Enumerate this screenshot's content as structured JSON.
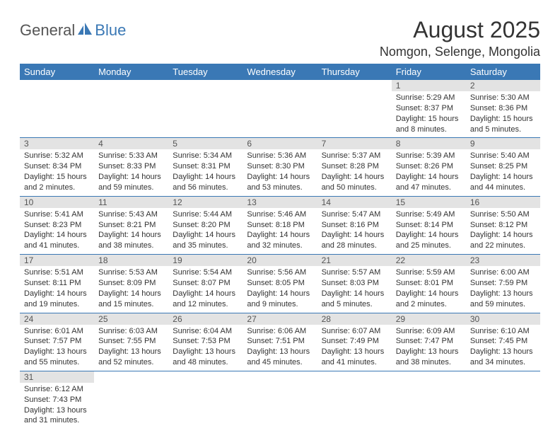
{
  "logo": {
    "text_a": "General",
    "text_b": "Blue"
  },
  "title": "August 2025",
  "location": "Nomgon, Selenge, Mongolia",
  "colors": {
    "header_bg": "#3a78b5",
    "header_fg": "#ffffff",
    "daynum_bg": "#e3e3e3",
    "row_border": "#3a78b5",
    "text": "#333333"
  },
  "day_headers": [
    "Sunday",
    "Monday",
    "Tuesday",
    "Wednesday",
    "Thursday",
    "Friday",
    "Saturday"
  ],
  "weeks": [
    [
      {
        "n": "",
        "sr": "",
        "ss": "",
        "dl": ""
      },
      {
        "n": "",
        "sr": "",
        "ss": "",
        "dl": ""
      },
      {
        "n": "",
        "sr": "",
        "ss": "",
        "dl": ""
      },
      {
        "n": "",
        "sr": "",
        "ss": "",
        "dl": ""
      },
      {
        "n": "",
        "sr": "",
        "ss": "",
        "dl": ""
      },
      {
        "n": "1",
        "sr": "Sunrise: 5:29 AM",
        "ss": "Sunset: 8:37 PM",
        "dl": "Daylight: 15 hours and 8 minutes."
      },
      {
        "n": "2",
        "sr": "Sunrise: 5:30 AM",
        "ss": "Sunset: 8:36 PM",
        "dl": "Daylight: 15 hours and 5 minutes."
      }
    ],
    [
      {
        "n": "3",
        "sr": "Sunrise: 5:32 AM",
        "ss": "Sunset: 8:34 PM",
        "dl": "Daylight: 15 hours and 2 minutes."
      },
      {
        "n": "4",
        "sr": "Sunrise: 5:33 AM",
        "ss": "Sunset: 8:33 PM",
        "dl": "Daylight: 14 hours and 59 minutes."
      },
      {
        "n": "5",
        "sr": "Sunrise: 5:34 AM",
        "ss": "Sunset: 8:31 PM",
        "dl": "Daylight: 14 hours and 56 minutes."
      },
      {
        "n": "6",
        "sr": "Sunrise: 5:36 AM",
        "ss": "Sunset: 8:30 PM",
        "dl": "Daylight: 14 hours and 53 minutes."
      },
      {
        "n": "7",
        "sr": "Sunrise: 5:37 AM",
        "ss": "Sunset: 8:28 PM",
        "dl": "Daylight: 14 hours and 50 minutes."
      },
      {
        "n": "8",
        "sr": "Sunrise: 5:39 AM",
        "ss": "Sunset: 8:26 PM",
        "dl": "Daylight: 14 hours and 47 minutes."
      },
      {
        "n": "9",
        "sr": "Sunrise: 5:40 AM",
        "ss": "Sunset: 8:25 PM",
        "dl": "Daylight: 14 hours and 44 minutes."
      }
    ],
    [
      {
        "n": "10",
        "sr": "Sunrise: 5:41 AM",
        "ss": "Sunset: 8:23 PM",
        "dl": "Daylight: 14 hours and 41 minutes."
      },
      {
        "n": "11",
        "sr": "Sunrise: 5:43 AM",
        "ss": "Sunset: 8:21 PM",
        "dl": "Daylight: 14 hours and 38 minutes."
      },
      {
        "n": "12",
        "sr": "Sunrise: 5:44 AM",
        "ss": "Sunset: 8:20 PM",
        "dl": "Daylight: 14 hours and 35 minutes."
      },
      {
        "n": "13",
        "sr": "Sunrise: 5:46 AM",
        "ss": "Sunset: 8:18 PM",
        "dl": "Daylight: 14 hours and 32 minutes."
      },
      {
        "n": "14",
        "sr": "Sunrise: 5:47 AM",
        "ss": "Sunset: 8:16 PM",
        "dl": "Daylight: 14 hours and 28 minutes."
      },
      {
        "n": "15",
        "sr": "Sunrise: 5:49 AM",
        "ss": "Sunset: 8:14 PM",
        "dl": "Daylight: 14 hours and 25 minutes."
      },
      {
        "n": "16",
        "sr": "Sunrise: 5:50 AM",
        "ss": "Sunset: 8:12 PM",
        "dl": "Daylight: 14 hours and 22 minutes."
      }
    ],
    [
      {
        "n": "17",
        "sr": "Sunrise: 5:51 AM",
        "ss": "Sunset: 8:11 PM",
        "dl": "Daylight: 14 hours and 19 minutes."
      },
      {
        "n": "18",
        "sr": "Sunrise: 5:53 AM",
        "ss": "Sunset: 8:09 PM",
        "dl": "Daylight: 14 hours and 15 minutes."
      },
      {
        "n": "19",
        "sr": "Sunrise: 5:54 AM",
        "ss": "Sunset: 8:07 PM",
        "dl": "Daylight: 14 hours and 12 minutes."
      },
      {
        "n": "20",
        "sr": "Sunrise: 5:56 AM",
        "ss": "Sunset: 8:05 PM",
        "dl": "Daylight: 14 hours and 9 minutes."
      },
      {
        "n": "21",
        "sr": "Sunrise: 5:57 AM",
        "ss": "Sunset: 8:03 PM",
        "dl": "Daylight: 14 hours and 5 minutes."
      },
      {
        "n": "22",
        "sr": "Sunrise: 5:59 AM",
        "ss": "Sunset: 8:01 PM",
        "dl": "Daylight: 14 hours and 2 minutes."
      },
      {
        "n": "23",
        "sr": "Sunrise: 6:00 AM",
        "ss": "Sunset: 7:59 PM",
        "dl": "Daylight: 13 hours and 59 minutes."
      }
    ],
    [
      {
        "n": "24",
        "sr": "Sunrise: 6:01 AM",
        "ss": "Sunset: 7:57 PM",
        "dl": "Daylight: 13 hours and 55 minutes."
      },
      {
        "n": "25",
        "sr": "Sunrise: 6:03 AM",
        "ss": "Sunset: 7:55 PM",
        "dl": "Daylight: 13 hours and 52 minutes."
      },
      {
        "n": "26",
        "sr": "Sunrise: 6:04 AM",
        "ss": "Sunset: 7:53 PM",
        "dl": "Daylight: 13 hours and 48 minutes."
      },
      {
        "n": "27",
        "sr": "Sunrise: 6:06 AM",
        "ss": "Sunset: 7:51 PM",
        "dl": "Daylight: 13 hours and 45 minutes."
      },
      {
        "n": "28",
        "sr": "Sunrise: 6:07 AM",
        "ss": "Sunset: 7:49 PM",
        "dl": "Daylight: 13 hours and 41 minutes."
      },
      {
        "n": "29",
        "sr": "Sunrise: 6:09 AM",
        "ss": "Sunset: 7:47 PM",
        "dl": "Daylight: 13 hours and 38 minutes."
      },
      {
        "n": "30",
        "sr": "Sunrise: 6:10 AM",
        "ss": "Sunset: 7:45 PM",
        "dl": "Daylight: 13 hours and 34 minutes."
      }
    ],
    [
      {
        "n": "31",
        "sr": "Sunrise: 6:12 AM",
        "ss": "Sunset: 7:43 PM",
        "dl": "Daylight: 13 hours and 31 minutes."
      },
      {
        "n": "",
        "sr": "",
        "ss": "",
        "dl": ""
      },
      {
        "n": "",
        "sr": "",
        "ss": "",
        "dl": ""
      },
      {
        "n": "",
        "sr": "",
        "ss": "",
        "dl": ""
      },
      {
        "n": "",
        "sr": "",
        "ss": "",
        "dl": ""
      },
      {
        "n": "",
        "sr": "",
        "ss": "",
        "dl": ""
      },
      {
        "n": "",
        "sr": "",
        "ss": "",
        "dl": ""
      }
    ]
  ]
}
